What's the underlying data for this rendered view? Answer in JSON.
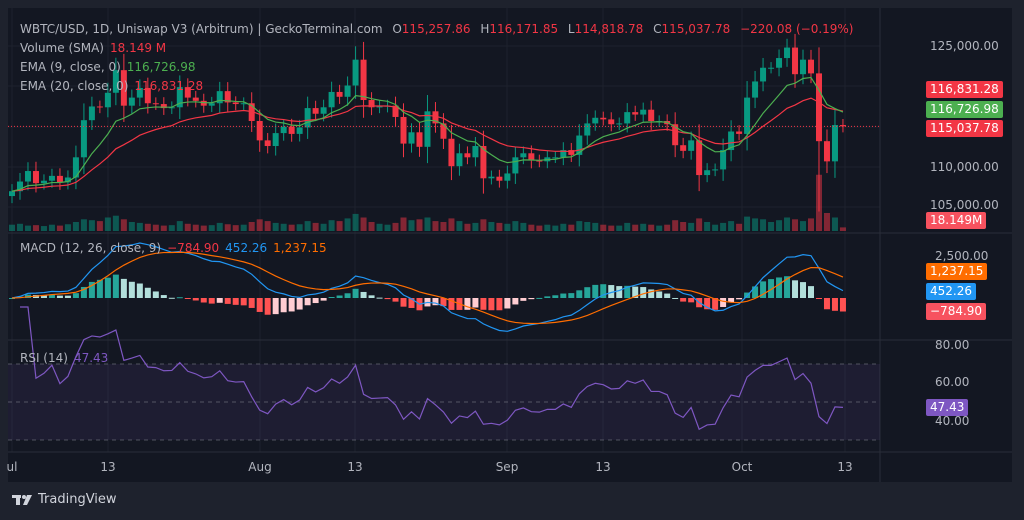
{
  "header": {
    "symbol": "WBTC/USD, 1D, Uniswap V3 (Arbitrum) | GeckoTerminal.com",
    "o_label": "O",
    "o": "115,257.86",
    "h_label": "H",
    "h": "116,171.85",
    "l_label": "L",
    "l": "114,818.78",
    "c_label": "C",
    "c": "115,037.78",
    "change": "−220.08 (−0.19%)"
  },
  "indicators": {
    "volume": {
      "label": "Volume (SMA)",
      "value": "18.149 M"
    },
    "ema9": {
      "label": "EMA (9, close, 0)",
      "value": "116,726.98"
    },
    "ema20": {
      "label": "EMA (20, close, 0)",
      "value": "116,831.28"
    },
    "macd": {
      "label": "MACD (12, 26, close, 9)",
      "hist": "−784.90",
      "macd": "452.26",
      "signal": "1,237.15"
    },
    "rsi": {
      "label": "RSI (14)",
      "value": "47.43"
    }
  },
  "price_axis": {
    "ticks": [
      "125,000.00",
      "110,000.00",
      "105,000.00"
    ]
  },
  "price_tags": {
    "ema20": "116,831.28",
    "ema9": "116,726.98",
    "last": "115,037.78",
    "volume": "18.149M"
  },
  "macd_axis": {
    "ticks": [
      "2,500.00"
    ],
    "tags": {
      "signal": "1,237.15",
      "macd": "452.26",
      "hist": "−784.90"
    }
  },
  "rsi_axis": {
    "ticks": [
      "80.00",
      "60.00",
      "40.00"
    ],
    "tag": "47.43"
  },
  "time_axis": [
    "ul",
    "13",
    "Aug",
    "13",
    "Sep",
    "13",
    "Oct",
    "13"
  ],
  "footer": {
    "brand": "TradingView"
  },
  "colors": {
    "up": "#089981",
    "down": "#f23645",
    "ema9": "#4caf50",
    "ema20": "#f23645",
    "macd": "#2196f3",
    "signal": "#ff6d00",
    "rsi": "#7e57c2",
    "background": "#131722"
  },
  "chart_data": {
    "type": "candlestick",
    "start": "Jul 1",
    "end": "Oct 13",
    "interval": "1D",
    "close_thousands_usd": [
      107.0,
      108.2,
      109.5,
      108.0,
      108.3,
      108.9,
      108.1,
      108.7,
      111.2,
      115.8,
      117.5,
      117.4,
      119.2,
      122.0,
      117.6,
      118.6,
      119.8,
      117.9,
      117.8,
      117.3,
      117.4,
      119.9,
      118.6,
      118.2,
      117.6,
      117.9,
      119.4,
      118.0,
      117.8,
      117.9,
      115.7,
      113.3,
      112.6,
      114.2,
      115.0,
      114.1,
      114.9,
      117.3,
      116.6,
      117.4,
      119.3,
      118.7,
      120.1,
      123.3,
      118.3,
      117.4,
      117.5,
      117.6,
      116.2,
      112.9,
      114.3,
      112.5,
      116.9,
      115.4,
      113.5,
      110.1,
      111.7,
      111.2,
      112.6,
      108.6,
      108.8,
      108.3,
      109.2,
      111.2,
      111.7,
      110.8,
      110.7,
      111.2,
      111.2,
      112.1,
      111.5,
      113.9,
      115.4,
      116.1,
      115.9,
      115.3,
      115.4,
      116.8,
      116.5,
      117.1,
      115.7,
      115.7,
      115.3,
      112.7,
      112.0,
      113.3,
      109.0,
      109.6,
      109.7,
      112.1,
      114.4,
      114.1,
      118.6,
      120.6,
      122.3,
      122.3,
      123.5,
      124.8,
      121.5,
      123.3,
      121.6,
      113.2,
      110.7,
      115.2,
      115.04
    ],
    "volume_millions": [
      14,
      16,
      12,
      13,
      11,
      14,
      12,
      15,
      20,
      26,
      24,
      22,
      30,
      34,
      26,
      20,
      18,
      16,
      14,
      12,
      13,
      22,
      16,
      14,
      12,
      13,
      18,
      15,
      13,
      14,
      20,
      26,
      22,
      18,
      16,
      14,
      15,
      22,
      18,
      16,
      24,
      22,
      28,
      38,
      30,
      20,
      16,
      14,
      18,
      30,
      24,
      26,
      30,
      22,
      20,
      28,
      22,
      16,
      18,
      26,
      20,
      18,
      16,
      22,
      18,
      14,
      12,
      14,
      12,
      16,
      14,
      22,
      20,
      18,
      14,
      12,
      12,
      18,
      14,
      16,
      14,
      12,
      14,
      24,
      20,
      18,
      28,
      20,
      14,
      18,
      22,
      16,
      32,
      28,
      26,
      20,
      24,
      30,
      26,
      22,
      28,
      125,
      40,
      30,
      8
    ],
    "price_range": [
      103000,
      127500
    ],
    "rsi_bands": [
      70,
      30
    ]
  }
}
